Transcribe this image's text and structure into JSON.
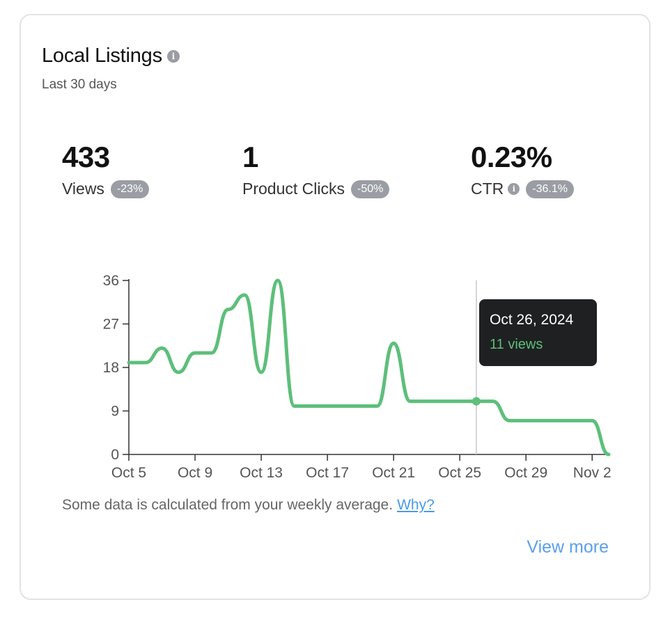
{
  "card": {
    "title": "Local Listings",
    "subtitle": "Last 30 days",
    "info_icon": "info-icon"
  },
  "metrics": [
    {
      "value": "433",
      "label": "Views",
      "change": "-23%"
    },
    {
      "value": "1",
      "label": "Product Clicks",
      "change": "-50%"
    },
    {
      "value": "0.23%",
      "label": "CTR",
      "change": "-36.1%",
      "has_info": true
    }
  ],
  "tooltip": {
    "date": "Oct 26, 2024",
    "value_text": "11 views"
  },
  "footnote": {
    "text": "Some data is calculated from your weekly average.",
    "link": "Why?"
  },
  "view_more": "View more",
  "colors": {
    "line": "#5dbf7a",
    "badge": "#9a9da3",
    "link": "#4a9ae8"
  },
  "chart_data": {
    "type": "line",
    "title": "",
    "xlabel": "",
    "ylabel": "",
    "ylim": [
      0,
      36
    ],
    "yticks": [
      0,
      9,
      18,
      27,
      36
    ],
    "x_ticks": [
      "Oct 5",
      "Oct 9",
      "Oct 13",
      "Oct 17",
      "Oct 21",
      "Oct 25",
      "Oct 29",
      "Nov 2"
    ],
    "grid": false,
    "highlight": {
      "x": "Oct 26",
      "y": 11
    },
    "series": [
      {
        "name": "",
        "x": [
          "Oct 5",
          "Oct 6",
          "Oct 7",
          "Oct 8",
          "Oct 9",
          "Oct 10",
          "Oct 11",
          "Oct 12",
          "Oct 13",
          "Oct 14",
          "Oct 15",
          "Oct 16",
          "Oct 17",
          "Oct 18",
          "Oct 19",
          "Oct 20",
          "Oct 21",
          "Oct 22",
          "Oct 23",
          "Oct 24",
          "Oct 25",
          "Oct 26",
          "Oct 27",
          "Oct 28",
          "Oct 29",
          "Oct 30",
          "Oct 31",
          "Nov 1",
          "Nov 2",
          "Nov 3"
        ],
        "values": [
          19,
          19,
          22,
          17,
          21,
          21,
          30,
          33,
          17,
          36,
          10,
          10,
          10,
          10,
          10,
          10,
          23,
          11,
          11,
          11,
          11,
          11,
          11,
          7,
          7,
          7,
          7,
          7,
          7,
          0
        ]
      }
    ]
  }
}
